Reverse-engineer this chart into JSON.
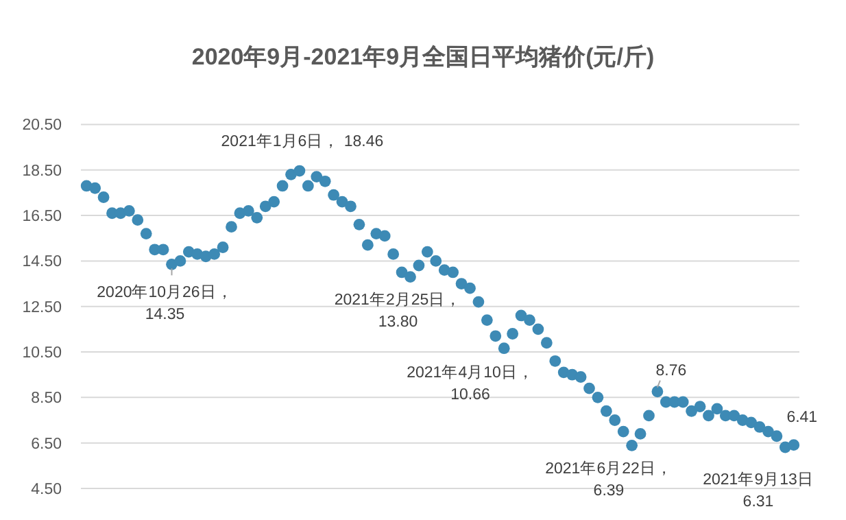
{
  "chart_data": {
    "type": "scatter",
    "title": "2020年9月-2021年9月全国日平均猪价(元/斤)",
    "categories": [
      null,
      null,
      null,
      null,
      null,
      null,
      null,
      null,
      null,
      null,
      null,
      null,
      null,
      null,
      null,
      null,
      null,
      null,
      null,
      null,
      null,
      null,
      null,
      null,
      null,
      null,
      null,
      null,
      null,
      null,
      null,
      null,
      null,
      null,
      null,
      null,
      null,
      null,
      null,
      null,
      null,
      null,
      null,
      null,
      null,
      null,
      null,
      null,
      null,
      null,
      null,
      null,
      null,
      null,
      null,
      null,
      null,
      null,
      null,
      null,
      null,
      null,
      null,
      null,
      null,
      null,
      null,
      null,
      null,
      null,
      null,
      null,
      null,
      null,
      null,
      null,
      null,
      null,
      null,
      null,
      null,
      null,
      null,
      null
    ],
    "series": [
      {
        "color": "#3d8ab5",
        "values": [
          17.8,
          17.7,
          17.3,
          16.6,
          16.6,
          16.7,
          16.3,
          15.7,
          15.0,
          15.0,
          14.35,
          14.5,
          14.9,
          14.8,
          14.7,
          14.8,
          15.1,
          16.0,
          16.6,
          16.7,
          16.4,
          16.9,
          17.1,
          17.8,
          18.3,
          18.46,
          17.8,
          18.2,
          18.0,
          17.4,
          17.1,
          16.9,
          16.1,
          15.2,
          15.7,
          15.6,
          14.8,
          14.0,
          13.8,
          14.3,
          14.9,
          14.5,
          14.1,
          14.0,
          13.5,
          13.3,
          12.7,
          11.9,
          11.2,
          10.66,
          11.3,
          12.1,
          11.9,
          11.5,
          10.9,
          10.1,
          9.6,
          9.5,
          9.4,
          8.9,
          8.5,
          7.9,
          7.5,
          7.0,
          6.39,
          6.9,
          7.7,
          8.76,
          8.3,
          8.3,
          8.3,
          7.9,
          8.1,
          7.7,
          8.0,
          7.7,
          7.7,
          7.5,
          7.4,
          7.2,
          7.0,
          6.8,
          6.31,
          6.41
        ]
      }
    ],
    "ylim": [
      4.5,
      20.5
    ],
    "yticks": [
      {
        "value": 4.5,
        "label": "4.50"
      },
      {
        "value": 6.5,
        "label": "6.50"
      },
      {
        "value": 8.5,
        "label": "8.50"
      },
      {
        "value": 10.5,
        "label": "10.50"
      },
      {
        "value": 12.5,
        "label": "12.50"
      },
      {
        "value": 14.5,
        "label": "14.50"
      },
      {
        "value": 16.5,
        "label": "16.50"
      },
      {
        "value": 18.5,
        "label": "18.50"
      },
      {
        "value": 20.5,
        "label": "20.50"
      }
    ],
    "tick_labels": "y",
    "grid": "y",
    "marker": "circle",
    "annotations": [
      {
        "text": "2020年10月26日，\n14.35",
        "y": 14.35
      },
      {
        "text": "2021年1月6日， 18.46",
        "y": 18.46
      },
      {
        "text": "2021年2月25日，\n13.80",
        "y": 13.8
      },
      "2021年4月10日，\n10.66",
      "2021年6月22日，\n6.39",
      {
        "text": "8.76",
        "y": 8.76
      },
      "2021年9月13日\n6.31",
      {
        "text": "6.41",
        "y": 6.41
      }
    ]
  }
}
